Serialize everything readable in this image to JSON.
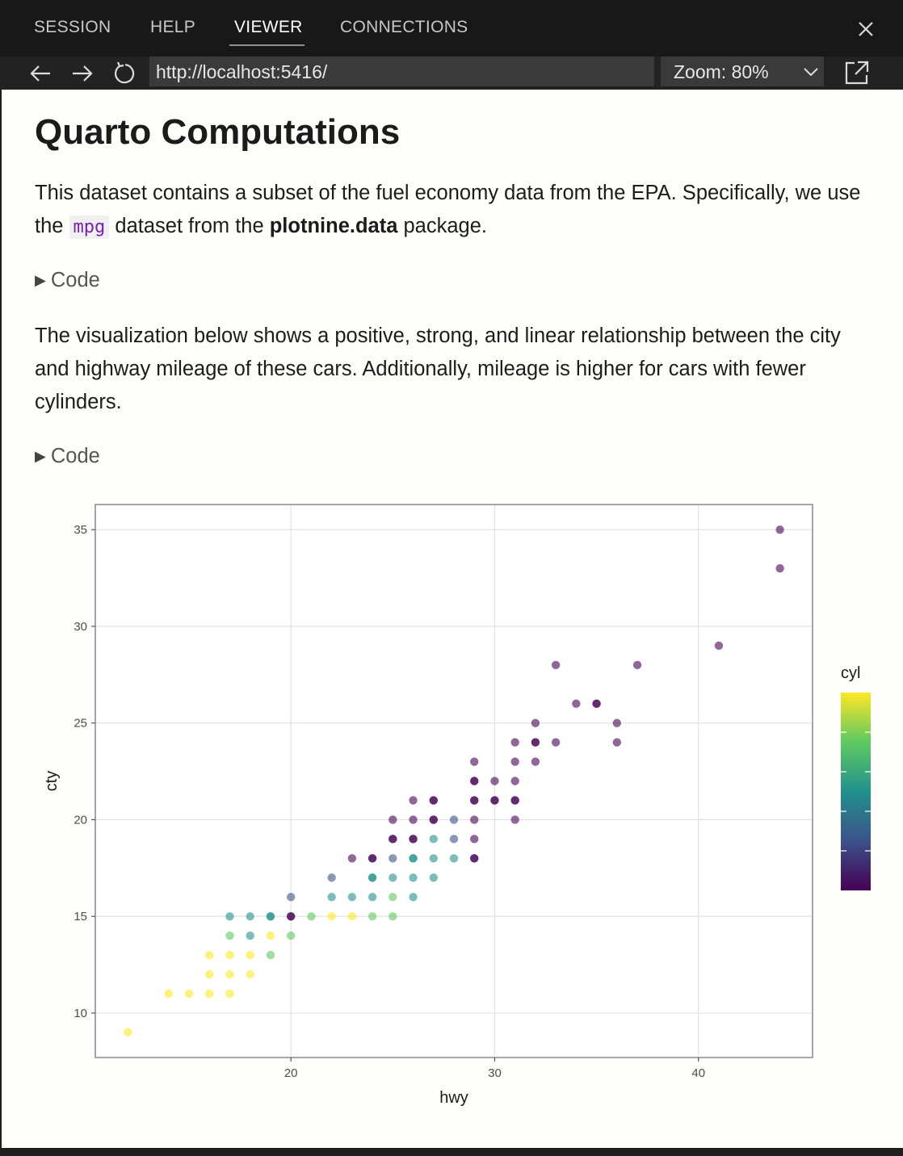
{
  "tabs": [
    {
      "label": "SESSION"
    },
    {
      "label": "HELP"
    },
    {
      "label": "VIEWER",
      "active": true
    },
    {
      "label": "CONNECTIONS"
    }
  ],
  "toolbar": {
    "url": "http://localhost:5416/",
    "zoom_label": "Zoom: 80%"
  },
  "content": {
    "title": "Quarto Computations",
    "para1_a": "This dataset contains a subset of the fuel economy data from the EPA. Specifically, we use the ",
    "para1_code": "mpg",
    "para1_b": " dataset from the ",
    "para1_bold": "plotnine.data",
    "para1_c": " package.",
    "code_toggle_1": "Code",
    "para2": "The visualization below shows a positive, strong, and linear relationship between the city and highway mileage of these cars. Additionally, mileage is higher for cars with fewer cylinders.",
    "code_toggle_2": "Code"
  },
  "chart_data": {
    "type": "scatter",
    "title": "",
    "xlabel": "hwy",
    "ylabel": "cty",
    "xlim": [
      10.4,
      45.6
    ],
    "ylim": [
      7.7,
      36.3
    ],
    "xticks": [
      20,
      30,
      40
    ],
    "yticks": [
      10,
      15,
      20,
      25,
      30,
      35
    ],
    "grid": true,
    "legend": {
      "title": "cyl",
      "placement": "right",
      "colormap": "viridis",
      "range": [
        4,
        8
      ]
    },
    "points": [
      [
        44,
        35,
        4
      ],
      [
        44,
        33,
        4
      ],
      [
        41,
        29,
        4
      ],
      [
        33,
        28,
        4
      ],
      [
        37,
        28,
        4
      ],
      [
        34,
        26,
        4
      ],
      [
        35,
        26,
        4
      ],
      [
        35,
        26,
        4
      ],
      [
        32,
        25,
        4
      ],
      [
        36,
        25,
        4
      ],
      [
        31,
        24,
        4
      ],
      [
        32,
        24,
        4
      ],
      [
        32,
        24,
        4
      ],
      [
        33,
        24,
        4
      ],
      [
        36,
        24,
        4
      ],
      [
        29,
        23,
        4
      ],
      [
        31,
        23,
        4
      ],
      [
        32,
        23,
        4
      ],
      [
        29,
        22,
        4
      ],
      [
        29,
        22,
        4
      ],
      [
        30,
        22,
        4
      ],
      [
        31,
        22,
        4
      ],
      [
        26,
        21,
        4
      ],
      [
        27,
        21,
        4
      ],
      [
        27,
        21,
        4
      ],
      [
        29,
        21,
        4
      ],
      [
        29,
        21,
        4
      ],
      [
        30,
        21,
        4
      ],
      [
        30,
        21,
        4
      ],
      [
        31,
        21,
        4
      ],
      [
        31,
        21,
        4
      ],
      [
        25,
        20,
        4
      ],
      [
        26,
        20,
        4
      ],
      [
        27,
        20,
        4
      ],
      [
        27,
        20,
        4
      ],
      [
        28,
        20,
        5
      ],
      [
        29,
        20,
        4
      ],
      [
        31,
        20,
        4
      ],
      [
        25,
        19,
        4
      ],
      [
        25,
        19,
        4
      ],
      [
        26,
        19,
        4
      ],
      [
        26,
        19,
        4
      ],
      [
        27,
        19,
        6
      ],
      [
        28,
        19,
        5
      ],
      [
        29,
        19,
        4
      ],
      [
        23,
        18,
        4
      ],
      [
        24,
        18,
        4
      ],
      [
        24,
        18,
        4
      ],
      [
        25,
        18,
        5
      ],
      [
        26,
        18,
        6
      ],
      [
        26,
        18,
        6
      ],
      [
        27,
        18,
        6
      ],
      [
        28,
        18,
        6
      ],
      [
        29,
        18,
        4
      ],
      [
        29,
        18,
        4
      ],
      [
        22,
        17,
        5
      ],
      [
        24,
        17,
        6
      ],
      [
        24,
        17,
        6
      ],
      [
        25,
        17,
        6
      ],
      [
        26,
        17,
        6
      ],
      [
        27,
        17,
        6
      ],
      [
        20,
        16,
        5
      ],
      [
        22,
        16,
        6
      ],
      [
        23,
        16,
        6
      ],
      [
        24,
        16,
        6
      ],
      [
        25,
        16,
        7
      ],
      [
        26,
        16,
        6
      ],
      [
        17,
        15,
        6
      ],
      [
        18,
        15,
        6
      ],
      [
        19,
        15,
        6
      ],
      [
        19,
        15,
        6
      ],
      [
        20,
        15,
        4
      ],
      [
        20,
        15,
        4
      ],
      [
        21,
        15,
        7
      ],
      [
        22,
        15,
        8
      ],
      [
        23,
        15,
        8
      ],
      [
        24,
        15,
        7
      ],
      [
        25,
        15,
        7
      ],
      [
        17,
        14,
        7
      ],
      [
        18,
        14,
        6
      ],
      [
        19,
        14,
        8
      ],
      [
        20,
        14,
        7
      ],
      [
        16,
        13,
        8
      ],
      [
        17,
        13,
        8
      ],
      [
        18,
        13,
        8
      ],
      [
        19,
        13,
        7
      ],
      [
        16,
        12,
        8
      ],
      [
        17,
        12,
        8
      ],
      [
        18,
        12,
        8
      ],
      [
        14,
        11,
        8
      ],
      [
        15,
        11,
        8
      ],
      [
        16,
        11,
        8
      ],
      [
        17,
        11,
        8
      ],
      [
        12,
        9,
        8
      ]
    ]
  }
}
